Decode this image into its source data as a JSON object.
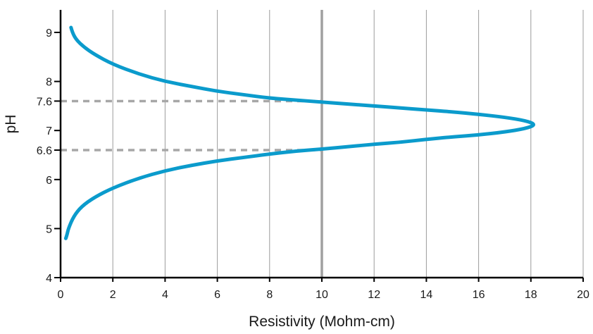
{
  "chart_data": {
    "type": "line",
    "title": "",
    "xlabel": "Resistivity (Mohm-cm)",
    "ylabel": "pH",
    "xlim": [
      0,
      20
    ],
    "ylim": [
      4,
      9.5
    ],
    "x_ticks": [
      0,
      2,
      4,
      6,
      8,
      10,
      12,
      14,
      16,
      18,
      20
    ],
    "y_ticks": [
      {
        "value": 4,
        "label": "4"
      },
      {
        "value": 5,
        "label": "5"
      },
      {
        "value": 6,
        "label": "6"
      },
      {
        "value": 6.6,
        "label": "6.6"
      },
      {
        "value": 7,
        "label": "7"
      },
      {
        "value": 7.6,
        "label": "7.6"
      },
      {
        "value": 8,
        "label": "8"
      },
      {
        "value": 9,
        "label": "9"
      }
    ],
    "grid": "vertical",
    "highlight_gridline_x": 10,
    "reference_lines": [
      {
        "y": 7.6,
        "x_end": 10
      },
      {
        "y": 6.6,
        "x_end": 10
      }
    ],
    "series": [
      {
        "color": "#0b9bcc",
        "points": [
          [
            0.4,
            9.1
          ],
          [
            0.45,
            9.0
          ],
          [
            0.6,
            8.85
          ],
          [
            0.9,
            8.7
          ],
          [
            1.3,
            8.55
          ],
          [
            2.0,
            8.35
          ],
          [
            3.0,
            8.15
          ],
          [
            4.0,
            8.0
          ],
          [
            5.0,
            7.9
          ],
          [
            6.0,
            7.8
          ],
          [
            7.0,
            7.73
          ],
          [
            8.0,
            7.66
          ],
          [
            9.0,
            7.62
          ],
          [
            10.0,
            7.58
          ],
          [
            11.0,
            7.54
          ],
          [
            12.0,
            7.5
          ],
          [
            13.0,
            7.46
          ],
          [
            14.0,
            7.42
          ],
          [
            15.0,
            7.38
          ],
          [
            16.0,
            7.33
          ],
          [
            17.0,
            7.27
          ],
          [
            17.8,
            7.2
          ],
          [
            18.2,
            7.12
          ],
          [
            17.8,
            7.04
          ],
          [
            17.0,
            6.97
          ],
          [
            16.0,
            6.91
          ],
          [
            15.0,
            6.87
          ],
          [
            14.0,
            6.82
          ],
          [
            13.0,
            6.76
          ],
          [
            12.0,
            6.72
          ],
          [
            11.0,
            6.67
          ],
          [
            10.0,
            6.62
          ],
          [
            9.0,
            6.58
          ],
          [
            8.0,
            6.52
          ],
          [
            7.0,
            6.45
          ],
          [
            6.0,
            6.38
          ],
          [
            5.0,
            6.29
          ],
          [
            4.0,
            6.18
          ],
          [
            3.0,
            6.03
          ],
          [
            2.0,
            5.83
          ],
          [
            1.3,
            5.64
          ],
          [
            0.8,
            5.45
          ],
          [
            0.5,
            5.25
          ],
          [
            0.3,
            5.0
          ],
          [
            0.25,
            4.88
          ],
          [
            0.2,
            4.8
          ]
        ]
      }
    ],
    "colors": {
      "series": "#0b9bcc",
      "axis": "#000000",
      "grid": "#9b9b9b",
      "highlight_grid": "#a0a0a0",
      "reference": "#a7a7a7"
    }
  }
}
